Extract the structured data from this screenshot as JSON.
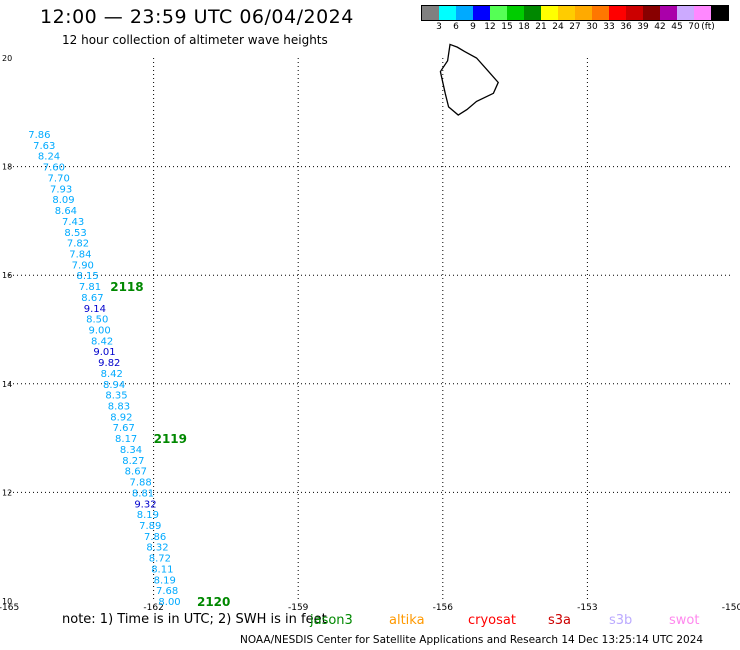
{
  "header": {
    "title": "12:00 — 23:59 UTC 06/04/2024",
    "subtitle": "12 hour collection of altimeter wave heights"
  },
  "legend": {
    "colors": [
      "#808080",
      "#00ffff",
      "#00aaff",
      "#0000ff",
      "#55ff55",
      "#00cc00",
      "#008800",
      "#ffff00",
      "#ffcc00",
      "#ffaa00",
      "#ff7700",
      "#ff0000",
      "#cc0000",
      "#880000",
      "#aa00aa",
      "#ccaaff",
      "#ff88ff",
      "#000000"
    ],
    "labels": [
      "3",
      "6",
      "9",
      "12",
      "15",
      "18",
      "21",
      "24",
      "27",
      "30",
      "33",
      "36",
      "39",
      "42",
      "45",
      "70"
    ],
    "unit": "(ft)"
  },
  "map": {
    "lon_ticks": [
      "-165",
      "-162",
      "-159",
      "-156",
      "-153",
      "-150"
    ],
    "lat_ticks": [
      "20",
      "18",
      "16",
      "14",
      "12",
      "10"
    ],
    "island_label": "",
    "track_points": [
      {
        "lat": 18.6,
        "lon": -164.6,
        "v": "7.86",
        "c": "#00aaff"
      },
      {
        "lat": 18.4,
        "lon": -164.5,
        "v": "7.63",
        "c": "#00aaff"
      },
      {
        "lat": 18.2,
        "lon": -164.4,
        "v": "8.24",
        "c": "#00aaff"
      },
      {
        "lat": 18.0,
        "lon": -164.3,
        "v": "7.60",
        "c": "#00aaff"
      },
      {
        "lat": 17.8,
        "lon": -164.2,
        "v": "7.70",
        "c": "#00aaff"
      },
      {
        "lat": 17.6,
        "lon": -164.15,
        "v": "7.93",
        "c": "#00aaff"
      },
      {
        "lat": 17.4,
        "lon": -164.1,
        "v": "8.09",
        "c": "#00aaff"
      },
      {
        "lat": 17.2,
        "lon": -164.05,
        "v": "8.64",
        "c": "#00aaff"
      },
      {
        "lat": 17.0,
        "lon": -163.9,
        "v": "7.43",
        "c": "#00aaff"
      },
      {
        "lat": 16.8,
        "lon": -163.85,
        "v": "8.53",
        "c": "#00aaff"
      },
      {
        "lat": 16.6,
        "lon": -163.8,
        "v": "7.82",
        "c": "#00aaff"
      },
      {
        "lat": 16.4,
        "lon": -163.75,
        "v": "7.84",
        "c": "#00aaff"
      },
      {
        "lat": 16.2,
        "lon": -163.7,
        "v": "7.90",
        "c": "#00aaff"
      },
      {
        "lat": 16.0,
        "lon": -163.6,
        "v": "8.15",
        "c": "#00aaff"
      },
      {
        "lat": 15.8,
        "lon": -163.55,
        "v": "7.81",
        "c": "#00aaff"
      },
      {
        "lat": 15.6,
        "lon": -163.5,
        "v": "8.67",
        "c": "#00aaff"
      },
      {
        "lat": 15.4,
        "lon": -163.45,
        "v": "9.14",
        "c": "#0000cc"
      },
      {
        "lat": 15.2,
        "lon": -163.4,
        "v": "8.50",
        "c": "#00aaff"
      },
      {
        "lat": 15.0,
        "lon": -163.35,
        "v": "9.00",
        "c": "#00aaff"
      },
      {
        "lat": 14.8,
        "lon": -163.3,
        "v": "8.42",
        "c": "#00aaff"
      },
      {
        "lat": 14.6,
        "lon": -163.25,
        "v": "9.01",
        "c": "#0000cc"
      },
      {
        "lat": 14.4,
        "lon": -163.15,
        "v": "9.82",
        "c": "#0000cc"
      },
      {
        "lat": 14.2,
        "lon": -163.1,
        "v": "8.42",
        "c": "#00aaff"
      },
      {
        "lat": 14.0,
        "lon": -163.05,
        "v": "8.94",
        "c": "#00aaff"
      },
      {
        "lat": 13.8,
        "lon": -163.0,
        "v": "8.35",
        "c": "#00aaff"
      },
      {
        "lat": 13.6,
        "lon": -162.95,
        "v": "8.83",
        "c": "#00aaff"
      },
      {
        "lat": 13.4,
        "lon": -162.9,
        "v": "8.92",
        "c": "#00aaff"
      },
      {
        "lat": 13.2,
        "lon": -162.85,
        "v": "7.67",
        "c": "#00aaff"
      },
      {
        "lat": 13.0,
        "lon": -162.8,
        "v": "8.17",
        "c": "#00aaff"
      },
      {
        "lat": 12.8,
        "lon": -162.7,
        "v": "8.34",
        "c": "#00aaff"
      },
      {
        "lat": 12.6,
        "lon": -162.65,
        "v": "8.27",
        "c": "#00aaff"
      },
      {
        "lat": 12.4,
        "lon": -162.6,
        "v": "8.67",
        "c": "#00aaff"
      },
      {
        "lat": 12.2,
        "lon": -162.5,
        "v": "7.88",
        "c": "#00aaff"
      },
      {
        "lat": 12.0,
        "lon": -162.45,
        "v": "8.81",
        "c": "#00aaff"
      },
      {
        "lat": 11.8,
        "lon": -162.4,
        "v": "9.32",
        "c": "#0000cc"
      },
      {
        "lat": 11.6,
        "lon": -162.35,
        "v": "8.19",
        "c": "#00aaff"
      },
      {
        "lat": 11.4,
        "lon": -162.3,
        "v": "7.89",
        "c": "#00aaff"
      },
      {
        "lat": 11.2,
        "lon": -162.2,
        "v": "7.86",
        "c": "#00aaff"
      },
      {
        "lat": 11.0,
        "lon": -162.15,
        "v": "8.32",
        "c": "#00aaff"
      },
      {
        "lat": 10.8,
        "lon": -162.1,
        "v": "8.72",
        "c": "#00aaff"
      },
      {
        "lat": 10.6,
        "lon": -162.05,
        "v": "8.11",
        "c": "#00aaff"
      },
      {
        "lat": 10.4,
        "lon": -162.0,
        "v": "8.19",
        "c": "#00aaff"
      },
      {
        "lat": 10.2,
        "lon": -161.95,
        "v": "7.68",
        "c": "#00aaff"
      },
      {
        "lat": 10.0,
        "lon": -161.9,
        "v": "8.00",
        "c": "#00aaff"
      }
    ],
    "time_labels": [
      {
        "lat": 15.8,
        "lon": -162.9,
        "t": "2118"
      },
      {
        "lat": 13.0,
        "lon": -162.0,
        "t": "2119"
      },
      {
        "lat": 10.0,
        "lon": -161.1,
        "t": "2120"
      }
    ],
    "time_color": "#008800"
  },
  "note": "note:  1) Time is in UTC; 2) SWH is in feet",
  "satellites": [
    {
      "name": "jason3",
      "color": "#008800"
    },
    {
      "name": "altika",
      "color": "#ff9900"
    },
    {
      "name": "cryosat",
      "color": "#ff0000"
    },
    {
      "name": "s3a",
      "color": "#cc0000"
    },
    {
      "name": "s3b",
      "color": "#bbaaff"
    },
    {
      "name": "swot",
      "color": "#ff88ee"
    }
  ],
  "footer": "NOAA/NESDIS Center for Satellite Applications and Research    14 Dec 13:25:14 UTC 2024"
}
